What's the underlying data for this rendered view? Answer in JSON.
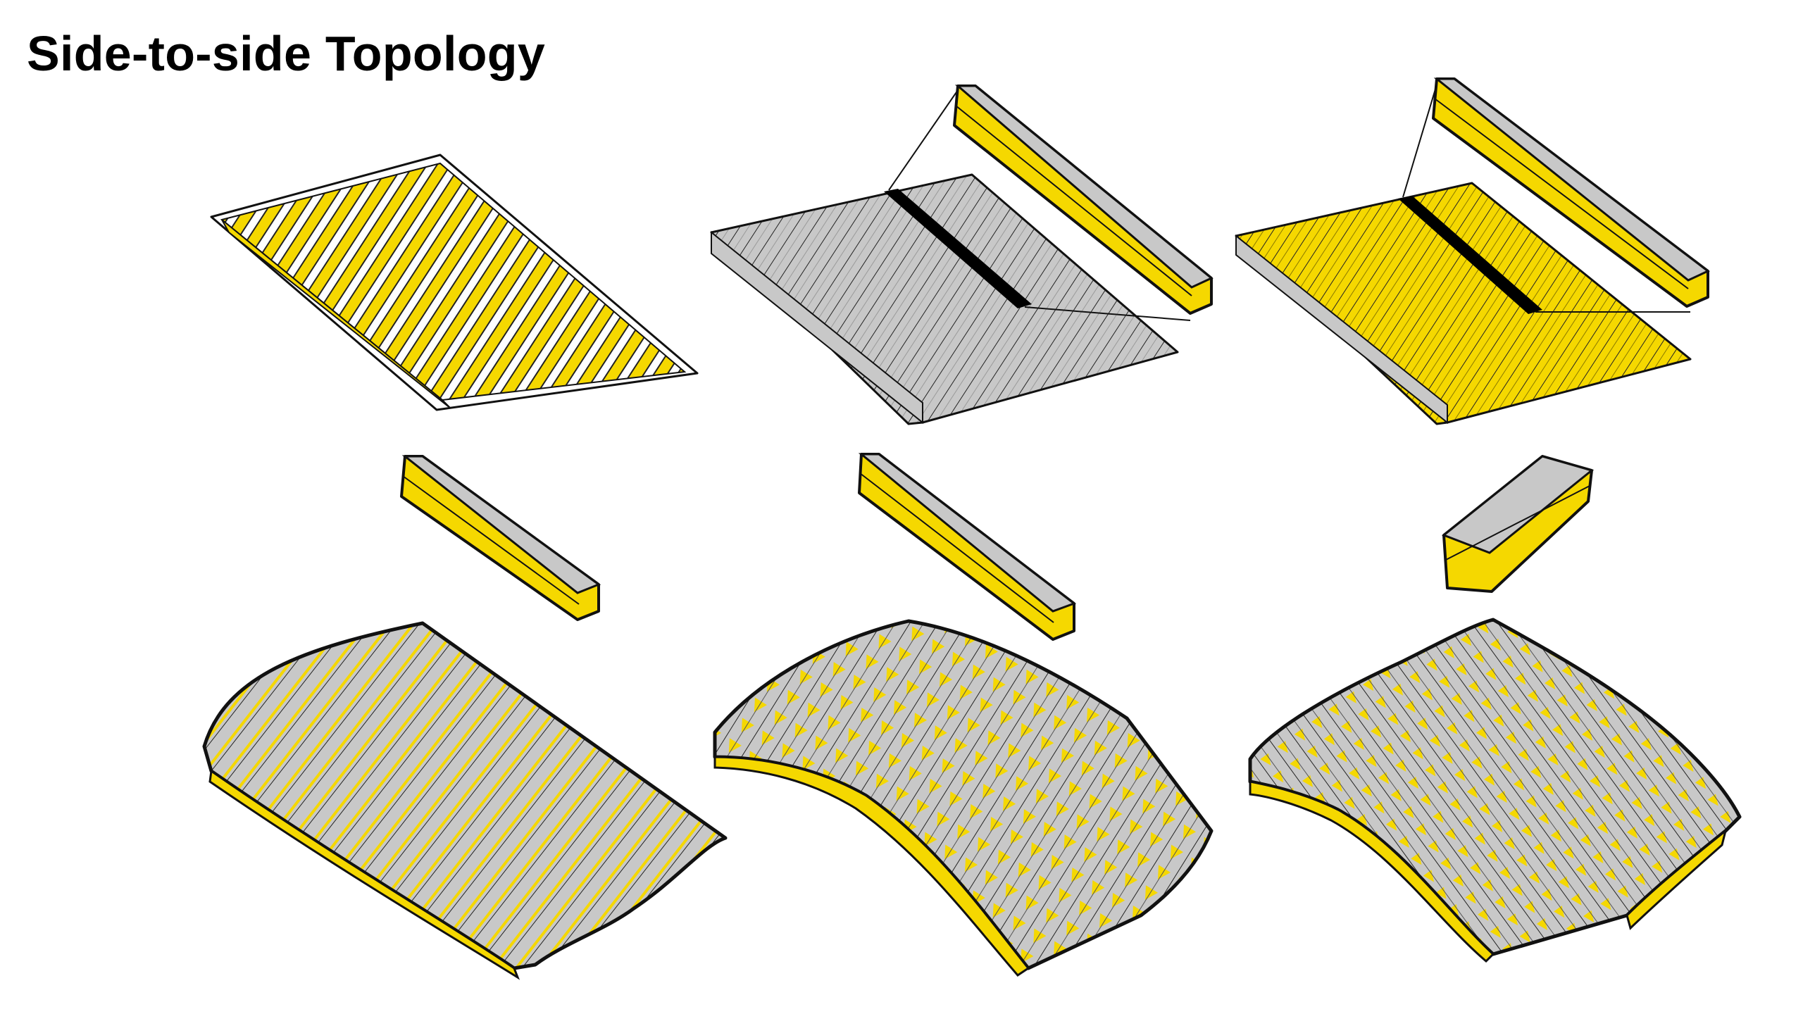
{
  "title": "Side-to-side Topology",
  "colors": {
    "yellow": "#F5D800",
    "grey": "#C8C8C8",
    "ink": "#111111",
    "highlight": "#000000"
  },
  "columns": [
    {
      "flat_style": "yellow-slots",
      "element_style": "long",
      "shell_style": "wave"
    },
    {
      "flat_style": "grey-logs",
      "element_style": "long",
      "shell_style": "crossed"
    },
    {
      "flat_style": "yellow-logs",
      "element_style": "short",
      "shell_style": "arch"
    }
  ]
}
